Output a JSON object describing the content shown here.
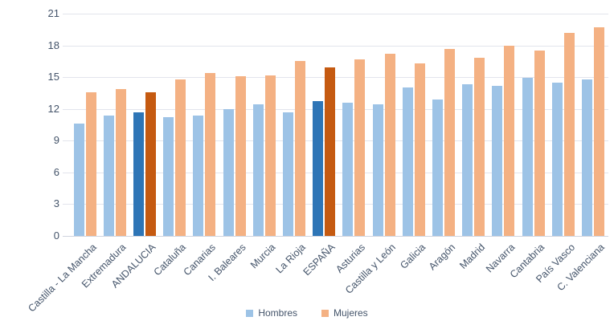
{
  "chart_data": {
    "type": "bar",
    "title": "",
    "xlabel": "",
    "ylabel": "",
    "categories": [
      "Castilla - La Mancha",
      "Extremadura",
      "ANDALUCIA",
      "Cataluña",
      "Canarias",
      "I. Baleares",
      "Murcia",
      "La Rioja",
      "ESPAÑA",
      "Asturias",
      "Castilla y León",
      "Galicia",
      "Aragón",
      "Madrid",
      "Navarra",
      "Cantabria",
      "País Vasco",
      "C. Valenciana"
    ],
    "series": [
      {
        "name": "Hombres",
        "color": "#9DC3E6",
        "highlight_color": "#2E75B6",
        "values": [
          10.6,
          11.4,
          11.7,
          11.2,
          11.4,
          12.0,
          12.4,
          11.7,
          12.7,
          12.6,
          12.4,
          14.0,
          12.9,
          14.3,
          14.2,
          14.9,
          14.5,
          14.8
        ]
      },
      {
        "name": "Mujeres",
        "color": "#F4B183",
        "highlight_color": "#C55A11",
        "values": [
          13.6,
          13.9,
          13.6,
          14.8,
          15.4,
          15.1,
          15.2,
          16.5,
          15.9,
          16.7,
          17.2,
          16.3,
          17.7,
          16.8,
          18.0,
          17.5,
          19.2,
          19.7
        ]
      }
    ],
    "highlighted_categories": [
      "ANDALUCIA",
      "ESPAÑA"
    ],
    "y_axis": {
      "min": 0,
      "max": 21,
      "step": 3,
      "tick_labels": [
        "0",
        "3",
        "6",
        "9",
        "12",
        "15",
        "18",
        "21"
      ]
    },
    "grid": true,
    "legend_position": "bottom",
    "colors": {
      "axis_text": "#44546A",
      "gridline": "#E2E4EC",
      "axis_line": "#D0D4DE",
      "background": "#FFFFFF"
    }
  }
}
